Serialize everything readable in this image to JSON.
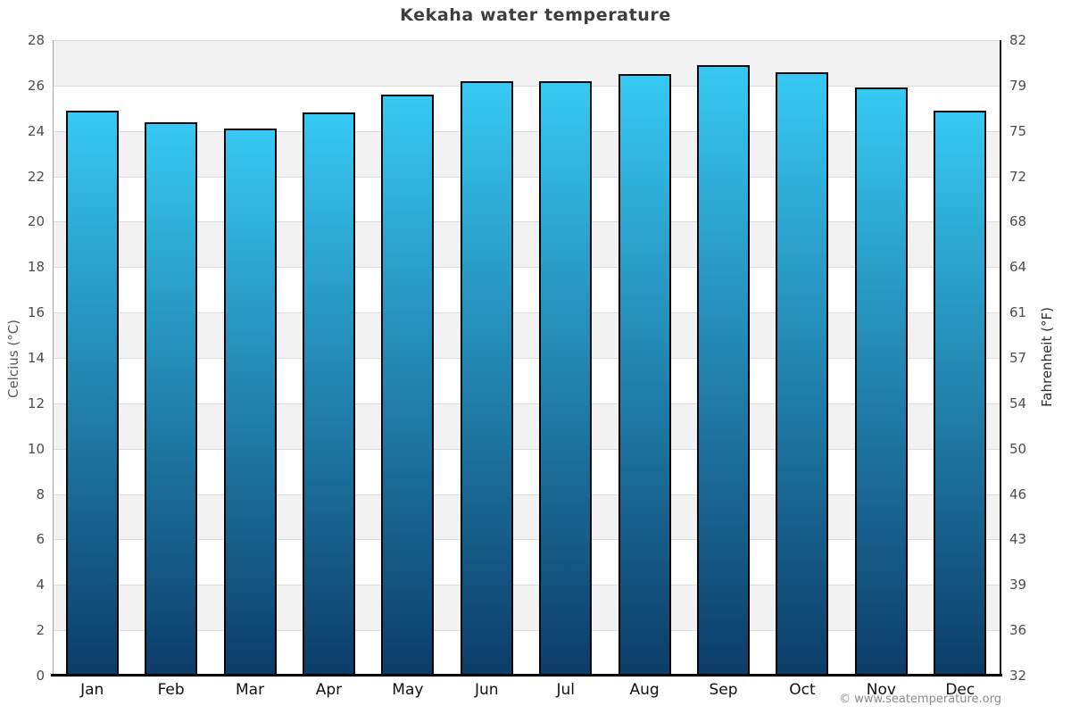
{
  "chart_data": {
    "type": "bar",
    "title": "Kekaha water temperature",
    "categories": [
      "Jan",
      "Feb",
      "Mar",
      "Apr",
      "May",
      "Jun",
      "Jul",
      "Aug",
      "Sep",
      "Oct",
      "Nov",
      "Dec"
    ],
    "series": [
      {
        "name": "Water temperature (°C)",
        "values": [
          24.9,
          24.4,
          24.1,
          24.8,
          25.6,
          26.2,
          26.2,
          26.5,
          26.9,
          26.6,
          25.9,
          24.9
        ]
      }
    ],
    "xlabel": "",
    "ylabel_left": "Celcius (°C)",
    "ylabel_right": "Fahrenheit (°F)",
    "ylim_left": [
      0,
      28
    ],
    "yticks_left": [
      0,
      2,
      4,
      6,
      8,
      10,
      12,
      14,
      16,
      18,
      20,
      22,
      24,
      26,
      28
    ],
    "yticks_right_labels": [
      "32",
      "36",
      "39",
      "43",
      "46",
      "50",
      "54",
      "57",
      "61",
      "64",
      "68",
      "72",
      "75",
      "79",
      "82"
    ],
    "grid": "horizontal gridlines with alternating shaded bands",
    "legend_position": "none",
    "colors": {
      "bar_gradient_top": "#36c9f3",
      "bar_gradient_bottom": "#0c3c68",
      "bar_border": "#050505",
      "band_shaded": "#f2f2f2",
      "band_plain": "#ffffff",
      "gridline": "#dcdcdc",
      "axis_left_line": "#a6a6a6",
      "axis_right_line": "#141414",
      "axis_bottom_line": "#000000",
      "title_text": "#3e3e3e",
      "tick_text": "#4d4d4d",
      "month_text": "#111111",
      "footer_text": "#8c8c8c"
    }
  },
  "footer": {
    "text": "© www.seatemperature.org"
  }
}
